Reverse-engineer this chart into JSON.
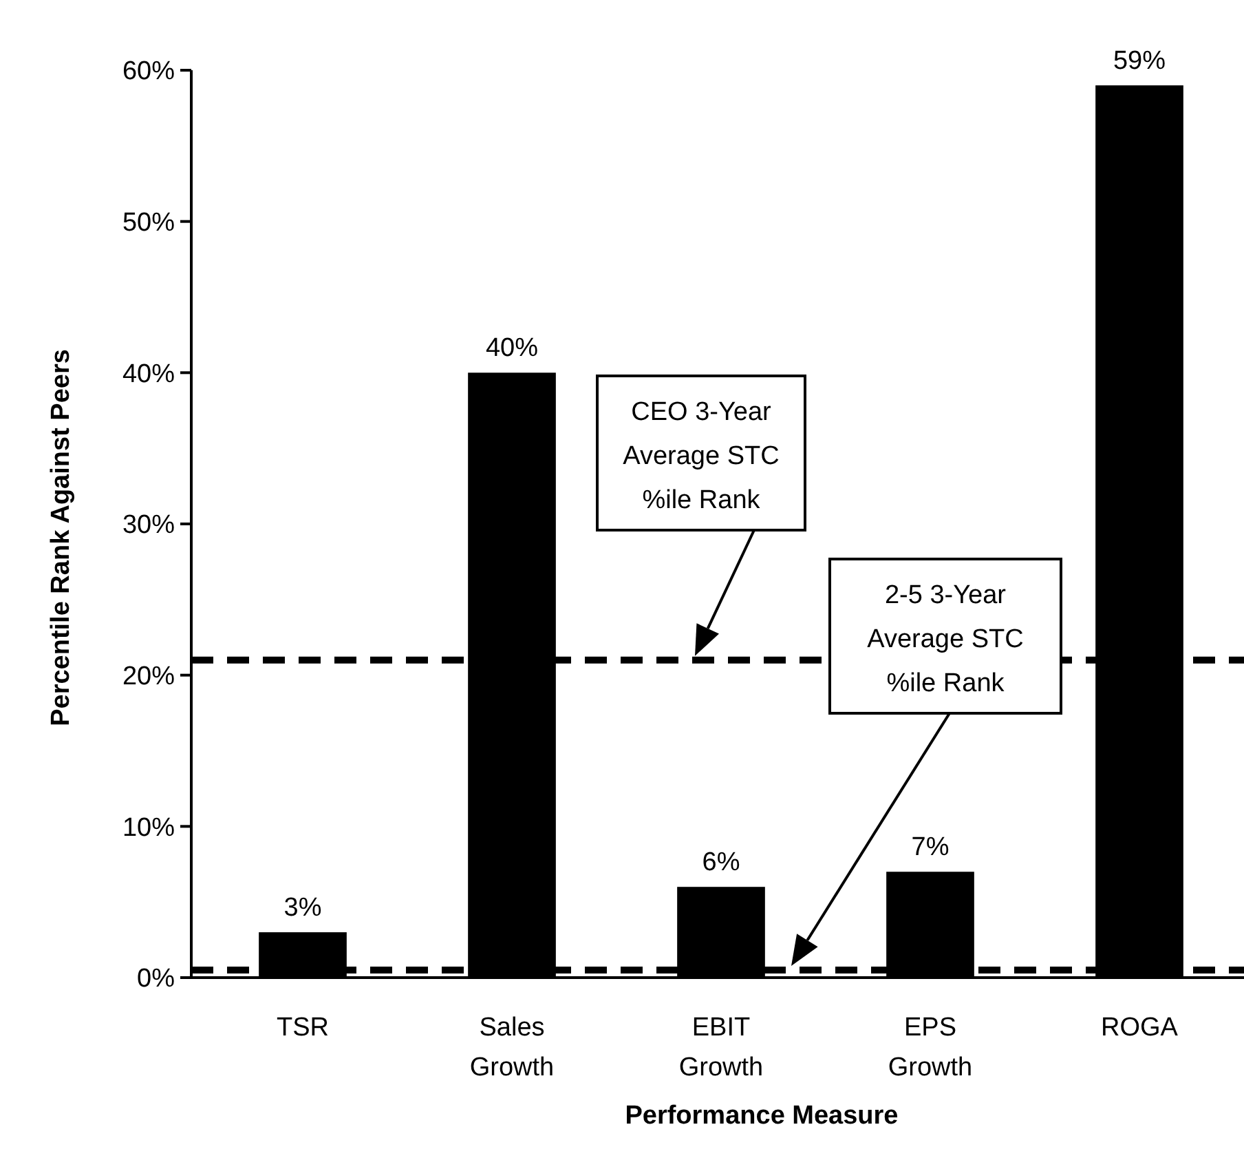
{
  "chart_data": {
    "type": "bar",
    "xlabel": "Performance Measure",
    "ylabel": "Percentile Rank Against Peers",
    "categories": [
      "TSR",
      "Sales Growth",
      "EBIT Growth",
      "EPS Growth",
      "ROGA"
    ],
    "values": [
      3,
      40,
      6,
      7,
      59
    ],
    "color": "#000000",
    "value_labels": [
      "3%",
      "40%",
      "6%",
      "7%",
      "59%"
    ],
    "ylim": [
      0,
      60
    ],
    "yticks": [
      {
        "value": 0,
        "label": "0%"
      },
      {
        "value": 10,
        "label": "10%"
      },
      {
        "value": 20,
        "label": "20%"
      },
      {
        "value": 30,
        "label": "30%"
      },
      {
        "value": 40,
        "label": "40%"
      },
      {
        "value": 50,
        "label": "50%"
      },
      {
        "value": 60,
        "label": "60%"
      }
    ],
    "ref_lines": [
      {
        "axis": "y",
        "value": 21,
        "line_style": "dashed",
        "color": "#000000"
      },
      {
        "axis": "y",
        "value": 0.5,
        "line_style": "dashed",
        "color": "#000000"
      }
    ],
    "annotations": [
      "CEO 3-Year Average STC %ile Rank",
      "2-5 3-Year Average STC %ile Rank"
    ],
    "grid": false
  }
}
